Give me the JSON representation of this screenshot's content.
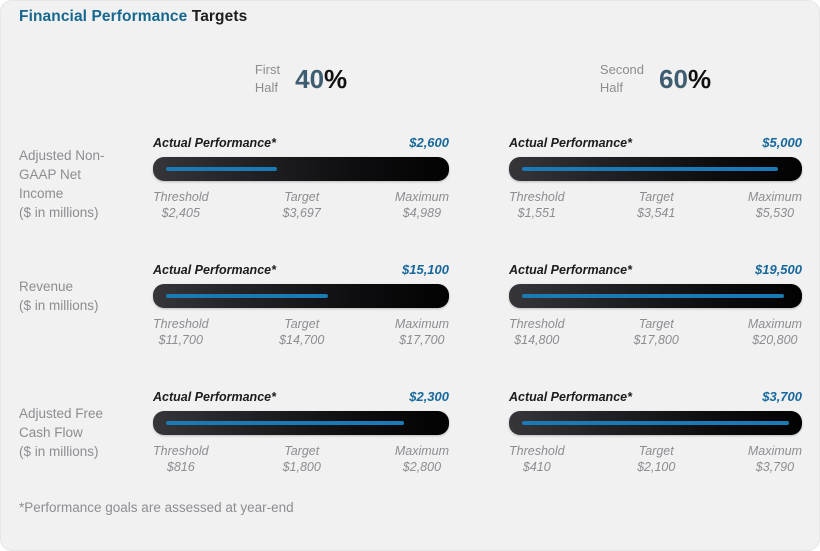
{
  "title": {
    "primary": "Financial Performance",
    "secondary": "Targets"
  },
  "footnote": "*Performance goals are assessed at year-end",
  "periods": [
    {
      "name": "First\nHalf",
      "weight": "40",
      "sign": "%"
    },
    {
      "name": "Second\nHalf",
      "weight": "60",
      "sign": "%"
    }
  ],
  "rows": [
    {
      "label": "Adjusted Non-\nGAAP Net\nIncome\n($ in millions)",
      "cells": [
        {
          "actual_label": "Actual Performance*",
          "actual_value": "$2,600",
          "fill_pct": 41,
          "stats": [
            {
              "label": "Threshold",
              "value": "$2,405"
            },
            {
              "label": "Target",
              "value": "$3,697"
            },
            {
              "label": "Maximum",
              "value": "$4,989"
            }
          ]
        },
        {
          "actual_label": "Actual Performance*",
          "actual_value": "$5,000",
          "fill_pct": 96,
          "stats": [
            {
              "label": "Threshold",
              "value": "$1,551"
            },
            {
              "label": "Target",
              "value": "$3,541"
            },
            {
              "label": "Maximum",
              "value": "$5,530"
            }
          ]
        }
      ]
    },
    {
      "label": "Revenue\n($ in millions)",
      "cells": [
        {
          "actual_label": "Actual Performance*",
          "actual_value": "$15,100",
          "fill_pct": 60,
          "stats": [
            {
              "label": "Threshold",
              "value": "$11,700"
            },
            {
              "label": "Target",
              "value": "$14,700"
            },
            {
              "label": "Maximum",
              "value": "$17,700"
            }
          ]
        },
        {
          "actual_label": "Actual Performance*",
          "actual_value": "$19,500",
          "fill_pct": 98,
          "stats": [
            {
              "label": "Threshold",
              "value": "$14,800"
            },
            {
              "label": "Target",
              "value": "$17,800"
            },
            {
              "label": "Maximum",
              "value": "$20,800"
            }
          ]
        }
      ]
    },
    {
      "label": "Adjusted Free\nCash Flow\n($ in millions)",
      "cells": [
        {
          "actual_label": "Actual Performance*",
          "actual_value": "$2,300",
          "fill_pct": 88,
          "stats": [
            {
              "label": "Threshold",
              "value": "$816"
            },
            {
              "label": "Target",
              "value": "$1,800"
            },
            {
              "label": "Maximum",
              "value": "$2,800"
            }
          ]
        },
        {
          "actual_label": "Actual Performance*",
          "actual_value": "$3,700",
          "fill_pct": 100,
          "stats": [
            {
              "label": "Threshold",
              "value": "$410"
            },
            {
              "label": "Target",
              "value": "$2,100"
            },
            {
              "label": "Maximum",
              "value": "$3,790"
            }
          ]
        }
      ]
    }
  ],
  "colors": {
    "title_blue": "#16688e",
    "accent_blue": "#16689c",
    "bar_line": "#1a7ab5",
    "percent_color": "#3f5d70",
    "gray_text": "#8b8d90",
    "bar_dark_start": "#36363a",
    "bar_dark_end": "#020203",
    "card_background": "#f1f1f2"
  },
  "chart_data": {
    "type": "bar",
    "subtype": "bullet",
    "title": "Financial Performance Targets",
    "footnote": "*Performance goals are assessed at year-end",
    "groups": [
      {
        "name": "First Half",
        "weight_pct": 40
      },
      {
        "name": "Second Half",
        "weight_pct": 60
      }
    ],
    "metrics": [
      {
        "name": "Adjusted Non-GAAP Net Income ($ in millions)",
        "first_half": {
          "actual": 2600,
          "threshold": 2405,
          "target": 3697,
          "maximum": 4989
        },
        "second_half": {
          "actual": 5000,
          "threshold": 1551,
          "target": 3541,
          "maximum": 5530
        }
      },
      {
        "name": "Revenue ($ in millions)",
        "first_half": {
          "actual": 15100,
          "threshold": 11700,
          "target": 14700,
          "maximum": 17700
        },
        "second_half": {
          "actual": 19500,
          "threshold": 14800,
          "target": 17800,
          "maximum": 20800
        }
      },
      {
        "name": "Adjusted Free Cash Flow ($ in millions)",
        "first_half": {
          "actual": 2300,
          "threshold": 816,
          "target": 1800,
          "maximum": 2800
        },
        "second_half": {
          "actual": 3700,
          "threshold": 410,
          "target": 2100,
          "maximum": 3790
        }
      }
    ],
    "legend_position": "none",
    "grid": false
  }
}
